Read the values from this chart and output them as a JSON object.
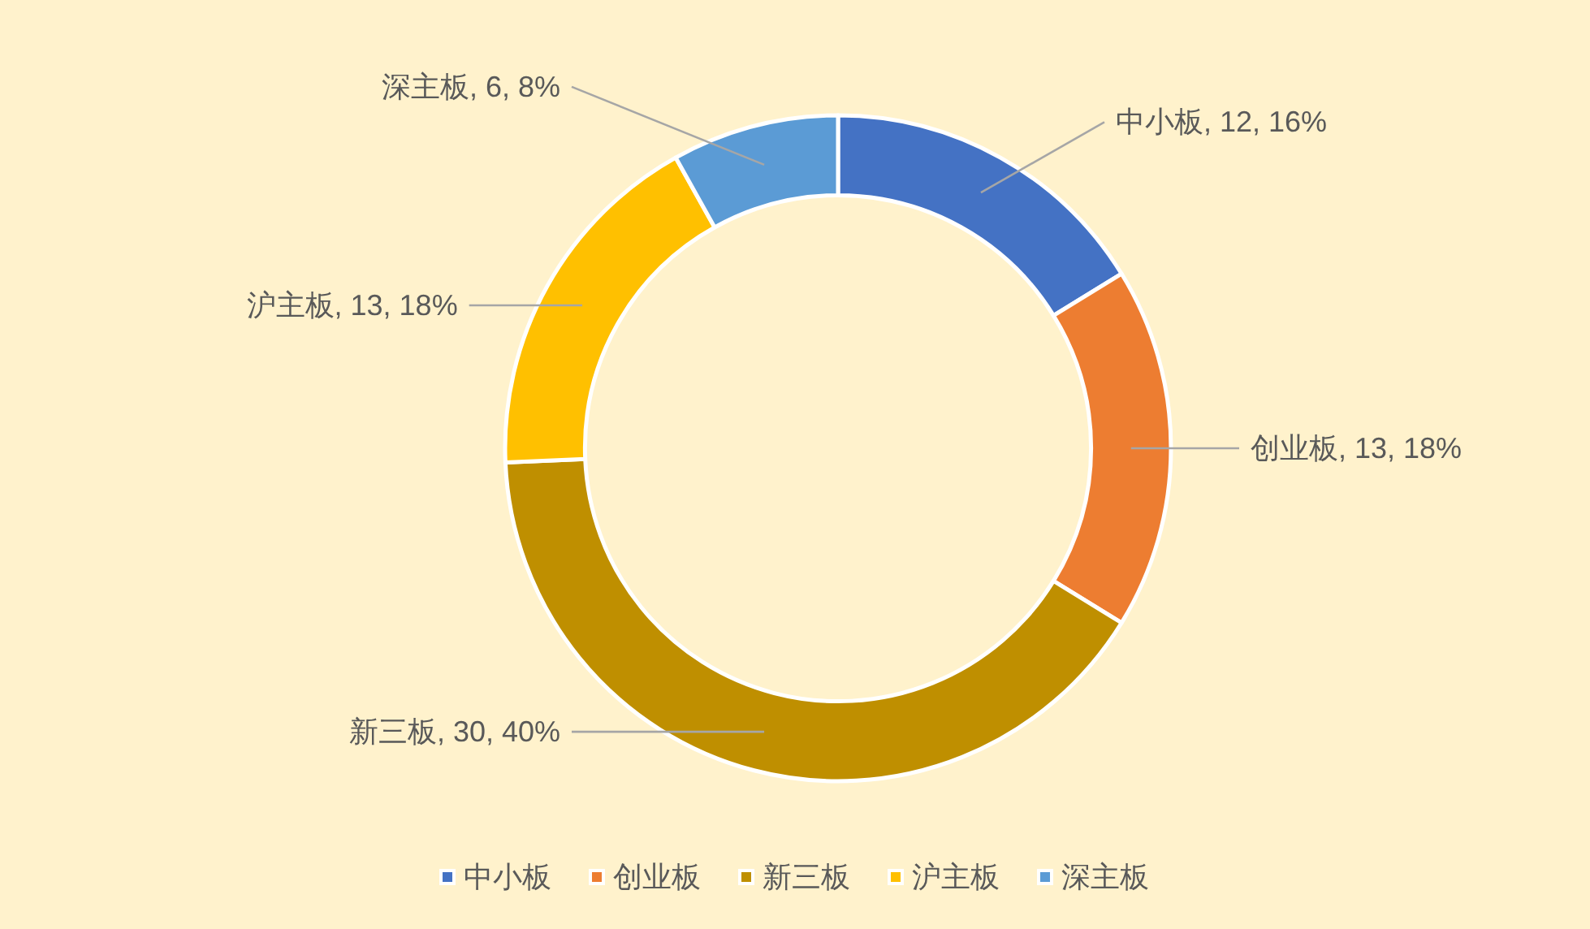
{
  "chart_data": {
    "type": "donut",
    "categories": [
      "中小板",
      "创业板",
      "新三板",
      "沪主板",
      "深主板"
    ],
    "values": [
      12,
      13,
      30,
      13,
      6
    ],
    "colors": [
      "#4472c4",
      "#ed7d31",
      "#bf8f00",
      "#ffc000",
      "#5b9bd5"
    ],
    "value_labels": [
      "中小板, 12, 16%",
      "创业板, 13, 18%",
      "新三板, 30, 40%",
      "沪主板, 13, 18%",
      "深主板, 6, 8%"
    ],
    "legend": "bottom"
  }
}
